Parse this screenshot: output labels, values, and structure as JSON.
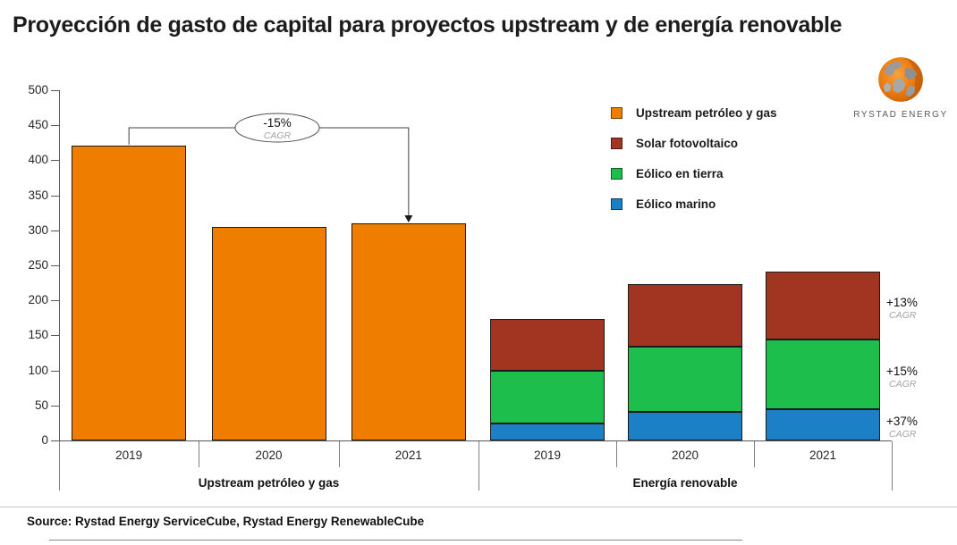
{
  "title": "Proyección de gasto de capital para proyectos upstream y de energía renovable",
  "logo": {
    "text": "RYSTAD ENERGY"
  },
  "source": "Source: Rystad Energy ServiceCube, Rystad Energy RenewableCube",
  "colors": {
    "upstream": "#EF7D00",
    "solar": "#A23522",
    "onshore_wind": "#1DBE4B",
    "offshore_wind": "#1B80C6",
    "axis": "#595959"
  },
  "legend": [
    {
      "key": "upstream",
      "label": "Upstream petróleo y gas"
    },
    {
      "key": "solar",
      "label": "Solar fotovoltaico"
    },
    {
      "key": "onshore_wind",
      "label": "Eólico en tierra"
    },
    {
      "key": "offshore_wind",
      "label": "Eólico marino"
    }
  ],
  "chart_data": {
    "type": "bar",
    "title": "Proyección de gasto de capital para proyectos upstream y de energía renovable",
    "ylim": [
      0,
      500
    ],
    "ytick_step": 50,
    "grid": false,
    "legend_position": "top-right",
    "groups": [
      {
        "label": "Upstream petróleo y gas",
        "categories": [
          "2019",
          "2020",
          "2021"
        ],
        "stacked": false,
        "series": [
          {
            "name": "Upstream petróleo y gas",
            "color_key": "upstream",
            "values": [
              421,
              305,
              310
            ]
          }
        ]
      },
      {
        "label": "Energía renovable",
        "categories": [
          "2019",
          "2020",
          "2021"
        ],
        "stacked": true,
        "series": [
          {
            "name": "Eólico marino",
            "color_key": "offshore_wind",
            "values": [
              24,
              41,
              45
            ]
          },
          {
            "name": "Eólico en tierra",
            "color_key": "onshore_wind",
            "values": [
              75,
              93,
              99
            ]
          },
          {
            "name": "Solar fotovoltaico",
            "color_key": "solar",
            "values": [
              75,
              89,
              97
            ]
          }
        ]
      }
    ],
    "annotations": {
      "upstream_cagr": {
        "value": "-15%",
        "sub": "CAGR",
        "from_category": "2019",
        "to_category": "2021"
      },
      "renewable_cagr": [
        {
          "segment": "Solar fotovoltaico",
          "value": "+13%",
          "sub": "CAGR"
        },
        {
          "segment": "Eólico en tierra",
          "value": "+15%",
          "sub": "CAGR"
        },
        {
          "segment": "Eólico marino",
          "value": "+37%",
          "sub": "CAGR"
        }
      ]
    }
  }
}
